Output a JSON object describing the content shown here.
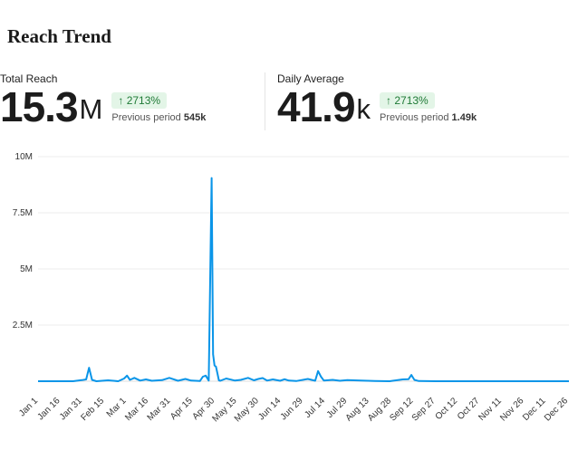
{
  "title": "Reach Trend",
  "stats": [
    {
      "label": "Total Reach",
      "value": "15.3",
      "unit": "M",
      "change": "↑ 2713%",
      "previous_label": "Previous period",
      "previous_value": "545k"
    },
    {
      "label": "Daily Average",
      "value": "41.9",
      "unit": "k",
      "change": "↑ 2713%",
      "previous_label": "Previous period",
      "previous_value": "1.49k"
    }
  ],
  "colors": {
    "line": "#0a95e8",
    "badge_bg": "#e3f5e7",
    "badge_text": "#1f7a36"
  },
  "chart_data": {
    "type": "line",
    "title": "",
    "xlabel": "",
    "ylabel": "",
    "ylim": [
      0,
      10000000
    ],
    "yticks": [
      2500000,
      5000000,
      7500000,
      10000000
    ],
    "ytick_labels": [
      "2.5M",
      "5M",
      "7.5M",
      "10M"
    ],
    "xrange": [
      "Jan 1",
      "Dec 31"
    ],
    "xtick_labels": [
      "Jan 1",
      "Jan 16",
      "Jan 31",
      "Feb 15",
      "Mar 1",
      "Mar 16",
      "Mar 31",
      "Apr 15",
      "Apr 30",
      "May 15",
      "May 30",
      "Jun 14",
      "Jun 29",
      "Jul 14",
      "Jul 29",
      "Aug 13",
      "Aug 28",
      "Sep 12",
      "Sep 27",
      "Oct 12",
      "Oct 27",
      "Nov 11",
      "Nov 26",
      "Dec 11",
      "Dec 26"
    ],
    "grid": true,
    "legend": "none",
    "series": [
      {
        "x": [
          "Jan 1",
          "Jan 25",
          "Jan 31",
          "Feb 3",
          "Feb 5",
          "Feb 7",
          "Feb 10",
          "Feb 18",
          "Feb 25",
          "Mar 1",
          "Mar 3",
          "Mar 5",
          "Mar 8",
          "Mar 12",
          "Mar 16",
          "Mar 20",
          "Mar 27",
          "Apr 1",
          "Apr 7",
          "Apr 12",
          "Apr 16",
          "Apr 22",
          "Apr 24",
          "Apr 26",
          "Apr 28",
          "Apr 30",
          "May 1",
          "May 2",
          "May 3",
          "May 4",
          "May 5",
          "May 6",
          "May 10",
          "May 16",
          "May 20",
          "May 25",
          "May 29",
          "Jun 1",
          "Jun 4",
          "Jun 7",
          "Jun 11",
          "Jun 16",
          "Jun 19",
          "Jun 22",
          "Jun 27",
          "Jul 5",
          "Jul 10",
          "Jul 12",
          "Jul 14",
          "Jul 16",
          "Jul 22",
          "Jul 27",
          "Aug 1",
          "Aug 10",
          "Aug 20",
          "Aug 30",
          "Sep 8",
          "Sep 12",
          "Sep 14",
          "Sep 16",
          "Sep 19",
          "Oct 1",
          "Oct 31",
          "Nov 30",
          "Dec 31"
        ],
        "y": [
          0,
          0,
          50000,
          80000,
          600000,
          60000,
          0,
          40000,
          0,
          120000,
          250000,
          60000,
          150000,
          30000,
          80000,
          20000,
          50000,
          150000,
          20000,
          100000,
          30000,
          10000,
          200000,
          250000,
          30000,
          9050000,
          1200000,
          700000,
          650000,
          350000,
          40000,
          20000,
          120000,
          30000,
          60000,
          150000,
          40000,
          100000,
          140000,
          30000,
          80000,
          20000,
          90000,
          30000,
          10000,
          100000,
          20000,
          450000,
          200000,
          30000,
          60000,
          20000,
          50000,
          30000,
          10000,
          0,
          80000,
          90000,
          280000,
          60000,
          10000,
          0,
          0,
          0,
          0
        ]
      }
    ]
  }
}
